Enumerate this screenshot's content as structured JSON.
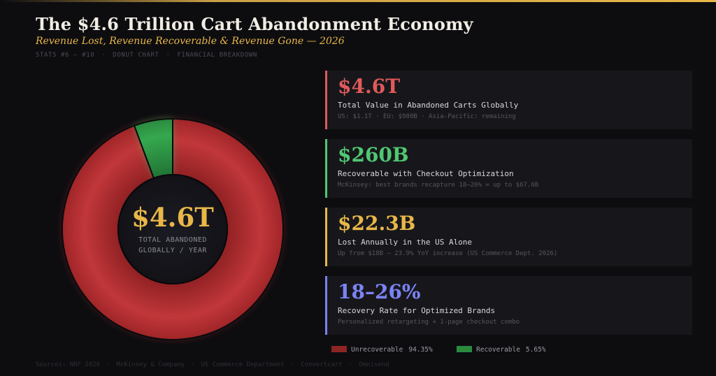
{
  "header": {
    "title": "The $4.6 Trillion Cart Abandonment Economy",
    "subtitle": "Revenue Lost, Revenue Recoverable & Revenue Gone — 2026",
    "tags": [
      "STATS #6 — #10",
      "DONUT CHART",
      "FINANCIAL BREAKDOWN"
    ]
  },
  "chart_data": {
    "type": "pie",
    "variant": "donut",
    "categories": [
      "Unrecoverable",
      "Recoverable"
    ],
    "values": [
      94.35,
      5.65
    ],
    "colors": [
      "#c1373a",
      "#2f9a47"
    ],
    "center_value": "$4.6T",
    "center_label": [
      "TOTAL ABANDONED",
      "GLOBALLY / YEAR"
    ],
    "legend": [
      {
        "name": "Unrecoverable",
        "pct": "94.35%",
        "color": "#8e2424"
      },
      {
        "name": "Recoverable",
        "pct": "5.65%",
        "color": "#2a8a3e"
      }
    ],
    "legend_position": "bottom-right"
  },
  "cards": [
    {
      "value": "$4.6T",
      "label": "Total Value in Abandoned Carts Globally",
      "note": "US: $1.1T  ·  EU: $980B  ·  Asia-Pacific: remaining",
      "color": "#e05a5a"
    },
    {
      "value": "$260B",
      "label": "Recoverable with Checkout Optimization",
      "note": "McKinsey: best brands recapture 18–26%  =  up to $67.6B",
      "color": "#4fc872"
    },
    {
      "value": "$22.3B",
      "label": "Lost Annually in the US Alone",
      "note": "Up from $18B — 23.9% YoY increase (US Commerce Dept. 2026)",
      "color": "#e8b748"
    },
    {
      "value": "18–26%",
      "label": "Recovery Rate for Optimized Brands",
      "note": "Personalized retargeting + 1-page checkout combo",
      "color": "#7c83f5"
    }
  ],
  "sources": [
    "Sources: NRF 2026",
    "McKinsey & Company",
    "US Commerce Department",
    "Convertcart",
    "Omnisend"
  ]
}
